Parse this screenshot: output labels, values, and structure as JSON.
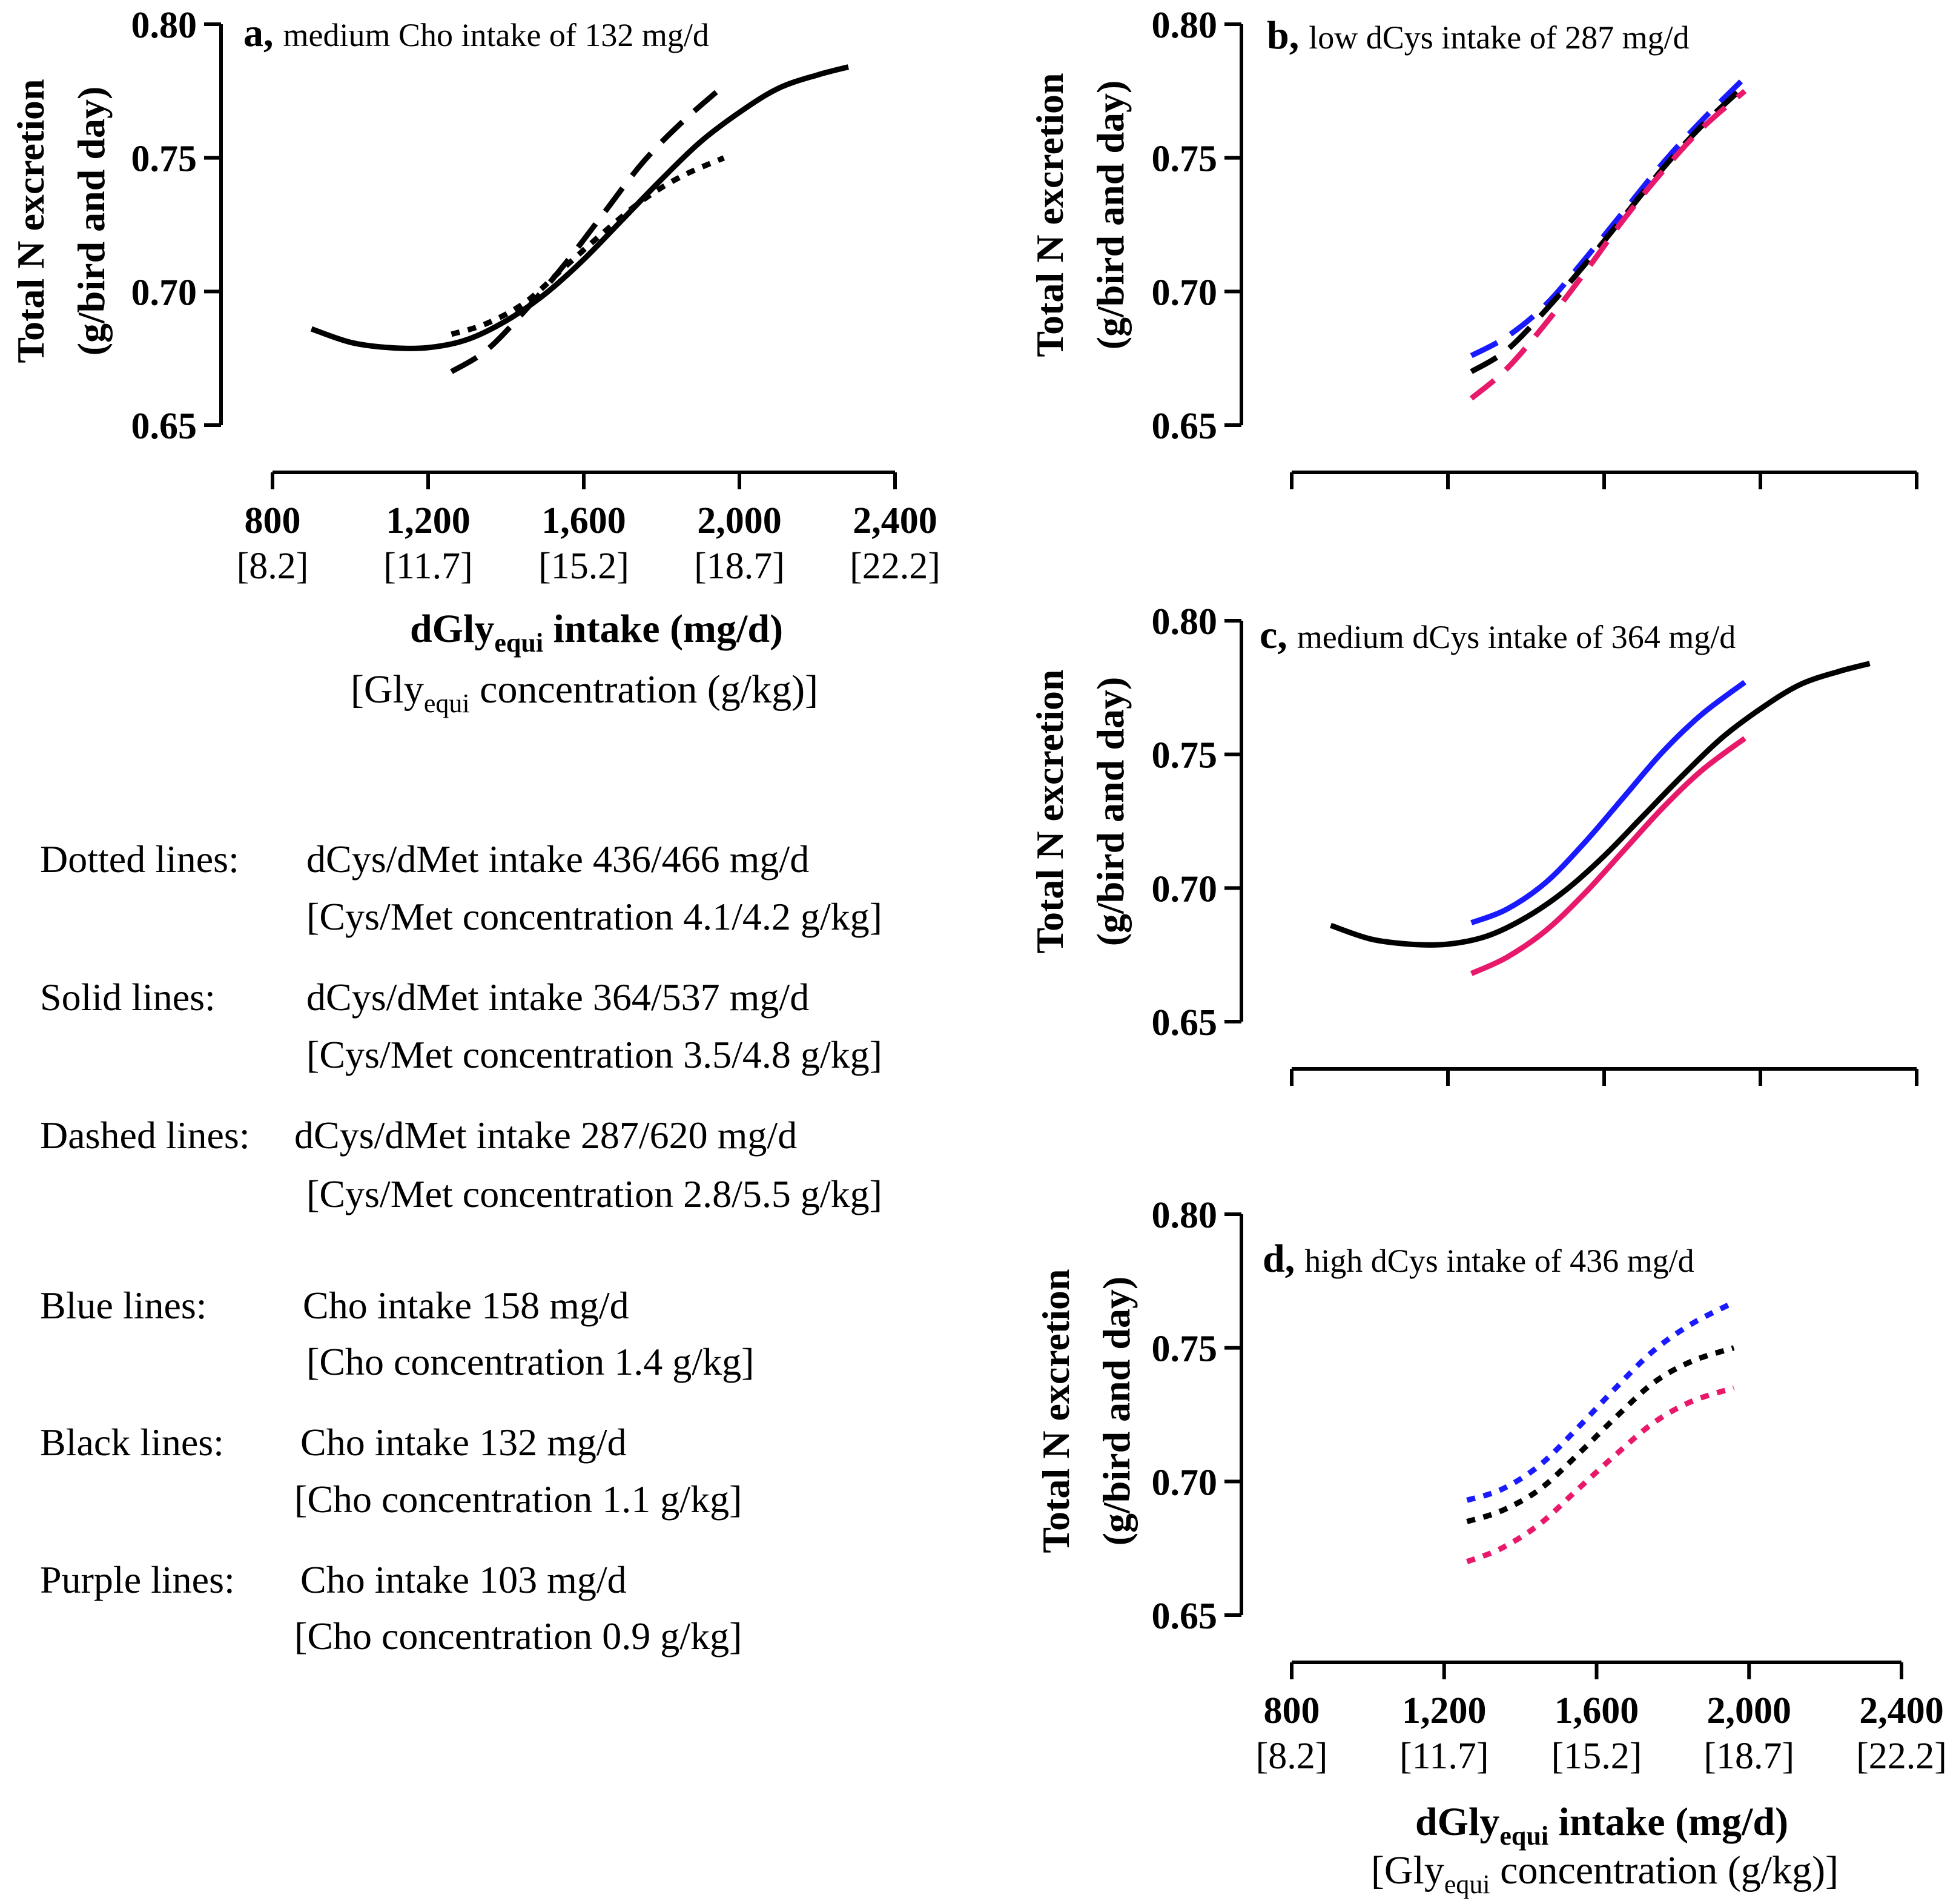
{
  "colors": {
    "black": "#000000",
    "blue": "#1a1aff",
    "purple": "#e8196a"
  },
  "y_axis": {
    "ticks": [
      "0.80",
      "0.75",
      "0.70",
      "0.65"
    ],
    "label_line1": "Total N excretion",
    "label_line2": "(g/bird and day)"
  },
  "x_axis": {
    "ticks": [
      "800",
      "1,200",
      "1,600",
      "2,000",
      "2,400"
    ],
    "sub_ticks": [
      "[8.2]",
      "[11.7]",
      "[15.2]",
      "[18.7]",
      "[22.2]"
    ],
    "label_main": "dGly",
    "label_sub": "equi",
    "label_rest": " intake (mg/d)",
    "label2_open": "[Gly",
    "label2_sub": "equi",
    "label2_rest": " concentration (g/kg)]"
  },
  "legend": [
    {
      "key": "Dotted lines:",
      "line1": "dCys/dMet intake 436/466 mg/d",
      "line2": "[Cys/Met concentration 4.1/4.2 g/kg]"
    },
    {
      "key": "Solid lines:",
      "line1": "dCys/dMet intake 364/537 mg/d",
      "line2": "[Cys/Met concentration 3.5/4.8 g/kg]"
    },
    {
      "key": "Dashed lines:",
      "line1": "dCys/dMet intake 287/620 mg/d",
      "line2": "[Cys/Met concentration 2.8/5.5 g/kg]"
    },
    {
      "key": "Blue lines:",
      "line1": "Cho intake 158 mg/d",
      "line2": "[Cho concentration 1.4 g/kg]"
    },
    {
      "key": "Black lines:",
      "line1": "Cho intake 132 mg/d",
      "line2": "[Cho concentration 1.1 g/kg]"
    },
    {
      "key": "Purple lines:",
      "line1": "Cho intake 103 mg/d",
      "line2": "[Cho concentration 0.9 g/kg]"
    }
  ],
  "chart_data": [
    {
      "id": "a",
      "type": "line",
      "letter": "a,",
      "title": "medium Cho intake of 132 mg/d",
      "xlabel": "dGly equi intake (mg/d) [Gly equi concentration (g/kg)]",
      "ylabel": "Total N excretion (g/bird and day)",
      "xlim": [
        800,
        2400
      ],
      "ylim": [
        0.65,
        0.8
      ],
      "series": [
        {
          "name": "Solid (dCys 364)",
          "style": "solid",
          "color": "black",
          "x": [
            900,
            1000,
            1100,
            1200,
            1300,
            1400,
            1500,
            1600,
            1700,
            1800,
            1900,
            2000,
            2100,
            2200,
            2280
          ],
          "y": [
            0.686,
            0.681,
            0.679,
            0.679,
            0.682,
            0.689,
            0.699,
            0.712,
            0.727,
            0.742,
            0.756,
            0.767,
            0.776,
            0.781,
            0.784
          ]
        },
        {
          "name": "Dotted (dCys 436)",
          "style": "dotted",
          "color": "black",
          "x": [
            1260,
            1350,
            1450,
            1550,
            1650,
            1750,
            1850,
            1960
          ],
          "y": [
            0.684,
            0.688,
            0.696,
            0.709,
            0.722,
            0.734,
            0.743,
            0.75
          ]
        },
        {
          "name": "Dashed (dCys 287)",
          "style": "dashed",
          "color": "black",
          "x": [
            1260,
            1350,
            1450,
            1550,
            1650,
            1750,
            1850,
            1960
          ],
          "y": [
            0.67,
            0.678,
            0.693,
            0.71,
            0.729,
            0.748,
            0.763,
            0.777
          ]
        }
      ]
    },
    {
      "id": "b",
      "type": "line",
      "letter": "b,",
      "title": "low dCys intake of 287 mg/d",
      "xlim": [
        800,
        2400
      ],
      "ylim": [
        0.65,
        0.8
      ],
      "series": [
        {
          "name": "Blue dashed",
          "style": "dashed",
          "color": "blue",
          "x": [
            1260,
            1350,
            1450,
            1550,
            1650,
            1750,
            1850,
            1960
          ],
          "y": [
            0.676,
            0.683,
            0.695,
            0.712,
            0.73,
            0.748,
            0.764,
            0.78
          ]
        },
        {
          "name": "Black dashed",
          "style": "dashed",
          "color": "black",
          "x": [
            1260,
            1350,
            1450,
            1550,
            1650,
            1750,
            1850,
            1960
          ],
          "y": [
            0.67,
            0.678,
            0.693,
            0.71,
            0.728,
            0.746,
            0.762,
            0.777
          ]
        },
        {
          "name": "Purple dashed",
          "style": "dashed",
          "color": "purple",
          "x": [
            1260,
            1350,
            1450,
            1550,
            1650,
            1750,
            1850,
            1960
          ],
          "y": [
            0.66,
            0.671,
            0.688,
            0.707,
            0.727,
            0.745,
            0.761,
            0.775
          ]
        }
      ]
    },
    {
      "id": "c",
      "type": "line",
      "letter": "c,",
      "title": "medium dCys intake of 364 mg/d",
      "xlim": [
        800,
        2400
      ],
      "ylim": [
        0.65,
        0.8
      ],
      "series": [
        {
          "name": "Blue solid",
          "style": "solid",
          "color": "blue",
          "x": [
            1260,
            1350,
            1450,
            1550,
            1650,
            1750,
            1850,
            1960
          ],
          "y": [
            0.687,
            0.692,
            0.702,
            0.717,
            0.734,
            0.751,
            0.765,
            0.777
          ]
        },
        {
          "name": "Black solid",
          "style": "solid",
          "color": "black",
          "x": [
            900,
            1000,
            1100,
            1200,
            1300,
            1400,
            1500,
            1600,
            1700,
            1800,
            1900,
            2000,
            2100,
            2200,
            2280
          ],
          "y": [
            0.686,
            0.681,
            0.679,
            0.679,
            0.682,
            0.689,
            0.699,
            0.712,
            0.727,
            0.742,
            0.756,
            0.767,
            0.776,
            0.781,
            0.784
          ]
        },
        {
          "name": "Purple solid",
          "style": "solid",
          "color": "purple",
          "x": [
            1260,
            1350,
            1450,
            1550,
            1650,
            1750,
            1850,
            1960
          ],
          "y": [
            0.668,
            0.674,
            0.684,
            0.698,
            0.714,
            0.73,
            0.744,
            0.756
          ]
        }
      ]
    },
    {
      "id": "d",
      "type": "line",
      "letter": "d,",
      "title": "high dCys intake of 436 mg/d",
      "xlim": [
        800,
        2400
      ],
      "ylim": [
        0.65,
        0.8
      ],
      "series": [
        {
          "name": "Blue dotted",
          "style": "dotted",
          "color": "blue",
          "x": [
            1260,
            1350,
            1450,
            1550,
            1650,
            1750,
            1850,
            1960
          ],
          "y": [
            0.693,
            0.697,
            0.706,
            0.72,
            0.735,
            0.749,
            0.759,
            0.767
          ]
        },
        {
          "name": "Black dotted",
          "style": "dotted",
          "color": "black",
          "x": [
            1260,
            1350,
            1450,
            1550,
            1650,
            1750,
            1850,
            1960
          ],
          "y": [
            0.685,
            0.689,
            0.697,
            0.71,
            0.724,
            0.737,
            0.745,
            0.75
          ]
        },
        {
          "name": "Purple dotted",
          "style": "dotted",
          "color": "purple",
          "x": [
            1260,
            1350,
            1450,
            1550,
            1650,
            1750,
            1850,
            1960
          ],
          "y": [
            0.67,
            0.675,
            0.684,
            0.697,
            0.71,
            0.722,
            0.73,
            0.735
          ]
        }
      ]
    }
  ]
}
